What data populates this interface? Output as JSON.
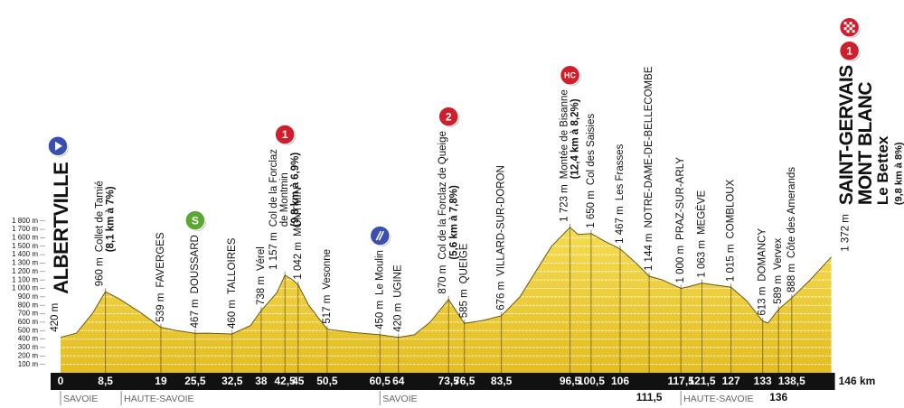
{
  "chart_data": {
    "type": "area",
    "color": "#f1d03e",
    "stroke": "#6b5a10",
    "grid": true,
    "x": [
      0,
      3,
      6,
      8.5,
      11,
      15,
      19,
      22,
      25.5,
      28,
      32.5,
      36,
      38,
      41,
      42.5,
      44,
      45,
      47,
      50.5,
      55,
      60.5,
      64,
      67,
      70,
      73.5,
      76.5,
      80,
      83.5,
      87,
      90,
      93,
      96.5,
      98,
      100.5,
      103,
      106,
      109,
      111.5,
      114,
      117.5,
      119,
      121.5,
      124,
      127,
      130,
      133,
      134,
      136,
      138.5,
      142,
      146
    ],
    "values": [
      420,
      470,
      700,
      960,
      880,
      720,
      539,
      500,
      467,
      470,
      460,
      560,
      738,
      950,
      1157,
      1100,
      1042,
      800,
      517,
      480,
      450,
      420,
      450,
      600,
      870,
      585,
      620,
      676,
      900,
      1200,
      1500,
      1723,
      1640,
      1650,
      1560,
      1467,
      1300,
      1144,
      1100,
      1000,
      1020,
      1063,
      1040,
      1015,
      850,
      613,
      589,
      750,
      888,
      1100,
      1372
    ],
    "xlim": [
      0,
      146
    ],
    "ylim": [
      0,
      1800
    ],
    "xticks": [
      0,
      {
        "value": 8.5,
        "label": "8,5"
      },
      19,
      {
        "value": 25.5,
        "label": "25,5"
      },
      {
        "value": 32.5,
        "label": "32,5"
      },
      38,
      {
        "value": 42.5,
        "label": "42,5"
      },
      45,
      {
        "value": 50.5,
        "label": "50,5"
      },
      {
        "value": 60.5,
        "label": "60,5"
      },
      64,
      {
        "value": 73.5,
        "label": "73,5"
      },
      {
        "value": 76.5,
        "label": "76,5"
      },
      {
        "value": 83.5,
        "label": "83,5"
      },
      {
        "value": 96.5,
        "label": "96,5"
      },
      {
        "value": 100.5,
        "label": "100,5"
      },
      106,
      {
        "value": 117.5,
        "label": "117,5"
      },
      {
        "value": 121.5,
        "label": "121,5"
      },
      127,
      133,
      {
        "value": 138.5,
        "label": "138,5"
      },
      {
        "value": 146,
        "label": "146 km"
      }
    ],
    "xticks_below": [
      {
        "value": 111.5,
        "label": "111,5"
      },
      136
    ],
    "yticks": [
      {
        "value": 100,
        "label": "100 m"
      },
      {
        "value": 200,
        "label": "200 m"
      },
      {
        "value": 300,
        "label": "300 m"
      },
      {
        "value": 400,
        "label": "400 m"
      },
      {
        "value": 500,
        "label": "500 m"
      },
      {
        "value": 600,
        "label": "600 m"
      },
      {
        "value": 700,
        "label": "700 m"
      },
      {
        "value": 800,
        "label": "800 m"
      },
      {
        "value": 900,
        "label": "900 m"
      },
      {
        "value": 1000,
        "label": "1 000 m"
      },
      {
        "value": 1100,
        "label": "1 100 m"
      },
      {
        "value": 1200,
        "label": "1 200 m"
      },
      {
        "value": 1300,
        "label": "1 300 m"
      },
      {
        "value": 1400,
        "label": "1 400 m"
      },
      {
        "value": 1500,
        "label": "1 500 m"
      },
      {
        "value": 1600,
        "label": "1 600 m"
      },
      {
        "value": 1700,
        "label": "1 700 m"
      },
      {
        "value": 1800,
        "label": "1 800 m"
      }
    ],
    "regions": [
      {
        "x": 0,
        "label": "SAVOIE"
      },
      {
        "x": 11.5,
        "label": "HAUTE-SAVOIE"
      },
      {
        "x": 60.5,
        "label": "SAVOIE"
      },
      {
        "x": 117.5,
        "label": "HAUTE-SAVOIE"
      }
    ],
    "start": {
      "x": 0,
      "alt": "420 m",
      "name": "ALBERTVILLE",
      "badge": {
        "icon": "arrow",
        "color": "#3a4fb0"
      }
    },
    "finish": {
      "x": 146,
      "alt": "1 372 m",
      "lines": [
        "SAINT-GERVAIS",
        "MONT BLANC"
      ],
      "sub": "Le Bettex",
      "note": "(9,8 km à 8%)",
      "badges": [
        {
          "label": "1",
          "color": "#cf1f2d"
        },
        {
          "icon": "checkered",
          "color": "#cf1f2d"
        }
      ]
    },
    "annotations": [
      {
        "x": 8.5,
        "alt": "960 m",
        "lines": [
          "Collet de Tamié"
        ],
        "note": "(8,1 km à 7%)"
      },
      {
        "x": 19,
        "alt": "539 m",
        "lines": [
          "FAVERGES"
        ]
      },
      {
        "x": 25.5,
        "alt": "467 m",
        "lines": [
          "DOUSSARD"
        ],
        "badge": {
          "label": "S",
          "color": "#5aa832"
        }
      },
      {
        "x": 32.5,
        "alt": "460 m",
        "lines": [
          "TALLOIRES"
        ]
      },
      {
        "x": 38,
        "alt": "738 m",
        "lines": [
          "Vérel"
        ]
      },
      {
        "x": 42.5,
        "alt": "1 157 m",
        "lines": [
          "Col de la Forclaz",
          "de Montmin"
        ],
        "note": "(9,8 km à 6,9%)",
        "badge": {
          "label": "1",
          "color": "#cf1f2d"
        }
      },
      {
        "x": 45,
        "alt": "1 042 m",
        "lines": [
          "MONTMIN"
        ]
      },
      {
        "x": 50.5,
        "alt": "517 m",
        "lines": [
          "Vesonne"
        ]
      },
      {
        "x": 60.5,
        "alt": "450 m",
        "lines": [
          "Le Moulin"
        ],
        "badge": {
          "icon": "feed",
          "color": "#3a4fb0"
        }
      },
      {
        "x": 64,
        "alt": "420 m",
        "lines": [
          "UGINE"
        ]
      },
      {
        "x": 73.5,
        "alt": "870 m",
        "lines": [
          "Col de la Forclaz de Queige"
        ],
        "note": "(5,6 km à 7,8%)",
        "badge": {
          "label": "2",
          "color": "#cf1f2d"
        }
      },
      {
        "x": 76.5,
        "alt": "585 m",
        "lines": [
          "QUEIGE"
        ]
      },
      {
        "x": 83.5,
        "alt": "676 m",
        "lines": [
          "VILLARD-SUR-DORON"
        ]
      },
      {
        "x": 96.5,
        "alt": "1 723 m",
        "lines": [
          "Montée de Bisanne"
        ],
        "note": "(12,4 km à 8,2%)",
        "badge": {
          "label": "HC",
          "color": "#cf1f2d"
        }
      },
      {
        "x": 100.5,
        "alt": "1 650 m",
        "lines": [
          "Col des Saisies"
        ]
      },
      {
        "x": 106,
        "alt": "1 467 m",
        "lines": [
          "Les Frasses"
        ]
      },
      {
        "x": 111.5,
        "alt": "1 144 m",
        "lines": [
          "NOTRE-DAME-DE-BELLECOMBE"
        ]
      },
      {
        "x": 117.5,
        "alt": "1 000 m",
        "lines": [
          "PRAZ-SUR-ARLY"
        ]
      },
      {
        "x": 121.5,
        "alt": "1 063 m",
        "lines": [
          "MEGÈVE"
        ]
      },
      {
        "x": 127,
        "alt": "1 015 m",
        "lines": [
          "COMBLOUX"
        ]
      },
      {
        "x": 133,
        "alt": "613 m",
        "lines": [
          "DOMANCY"
        ]
      },
      {
        "x": 136,
        "alt": "589 m",
        "lines": [
          "Vervex"
        ]
      },
      {
        "x": 138.5,
        "alt": "888 m",
        "lines": [
          "Côte des Amerands"
        ]
      }
    ]
  }
}
